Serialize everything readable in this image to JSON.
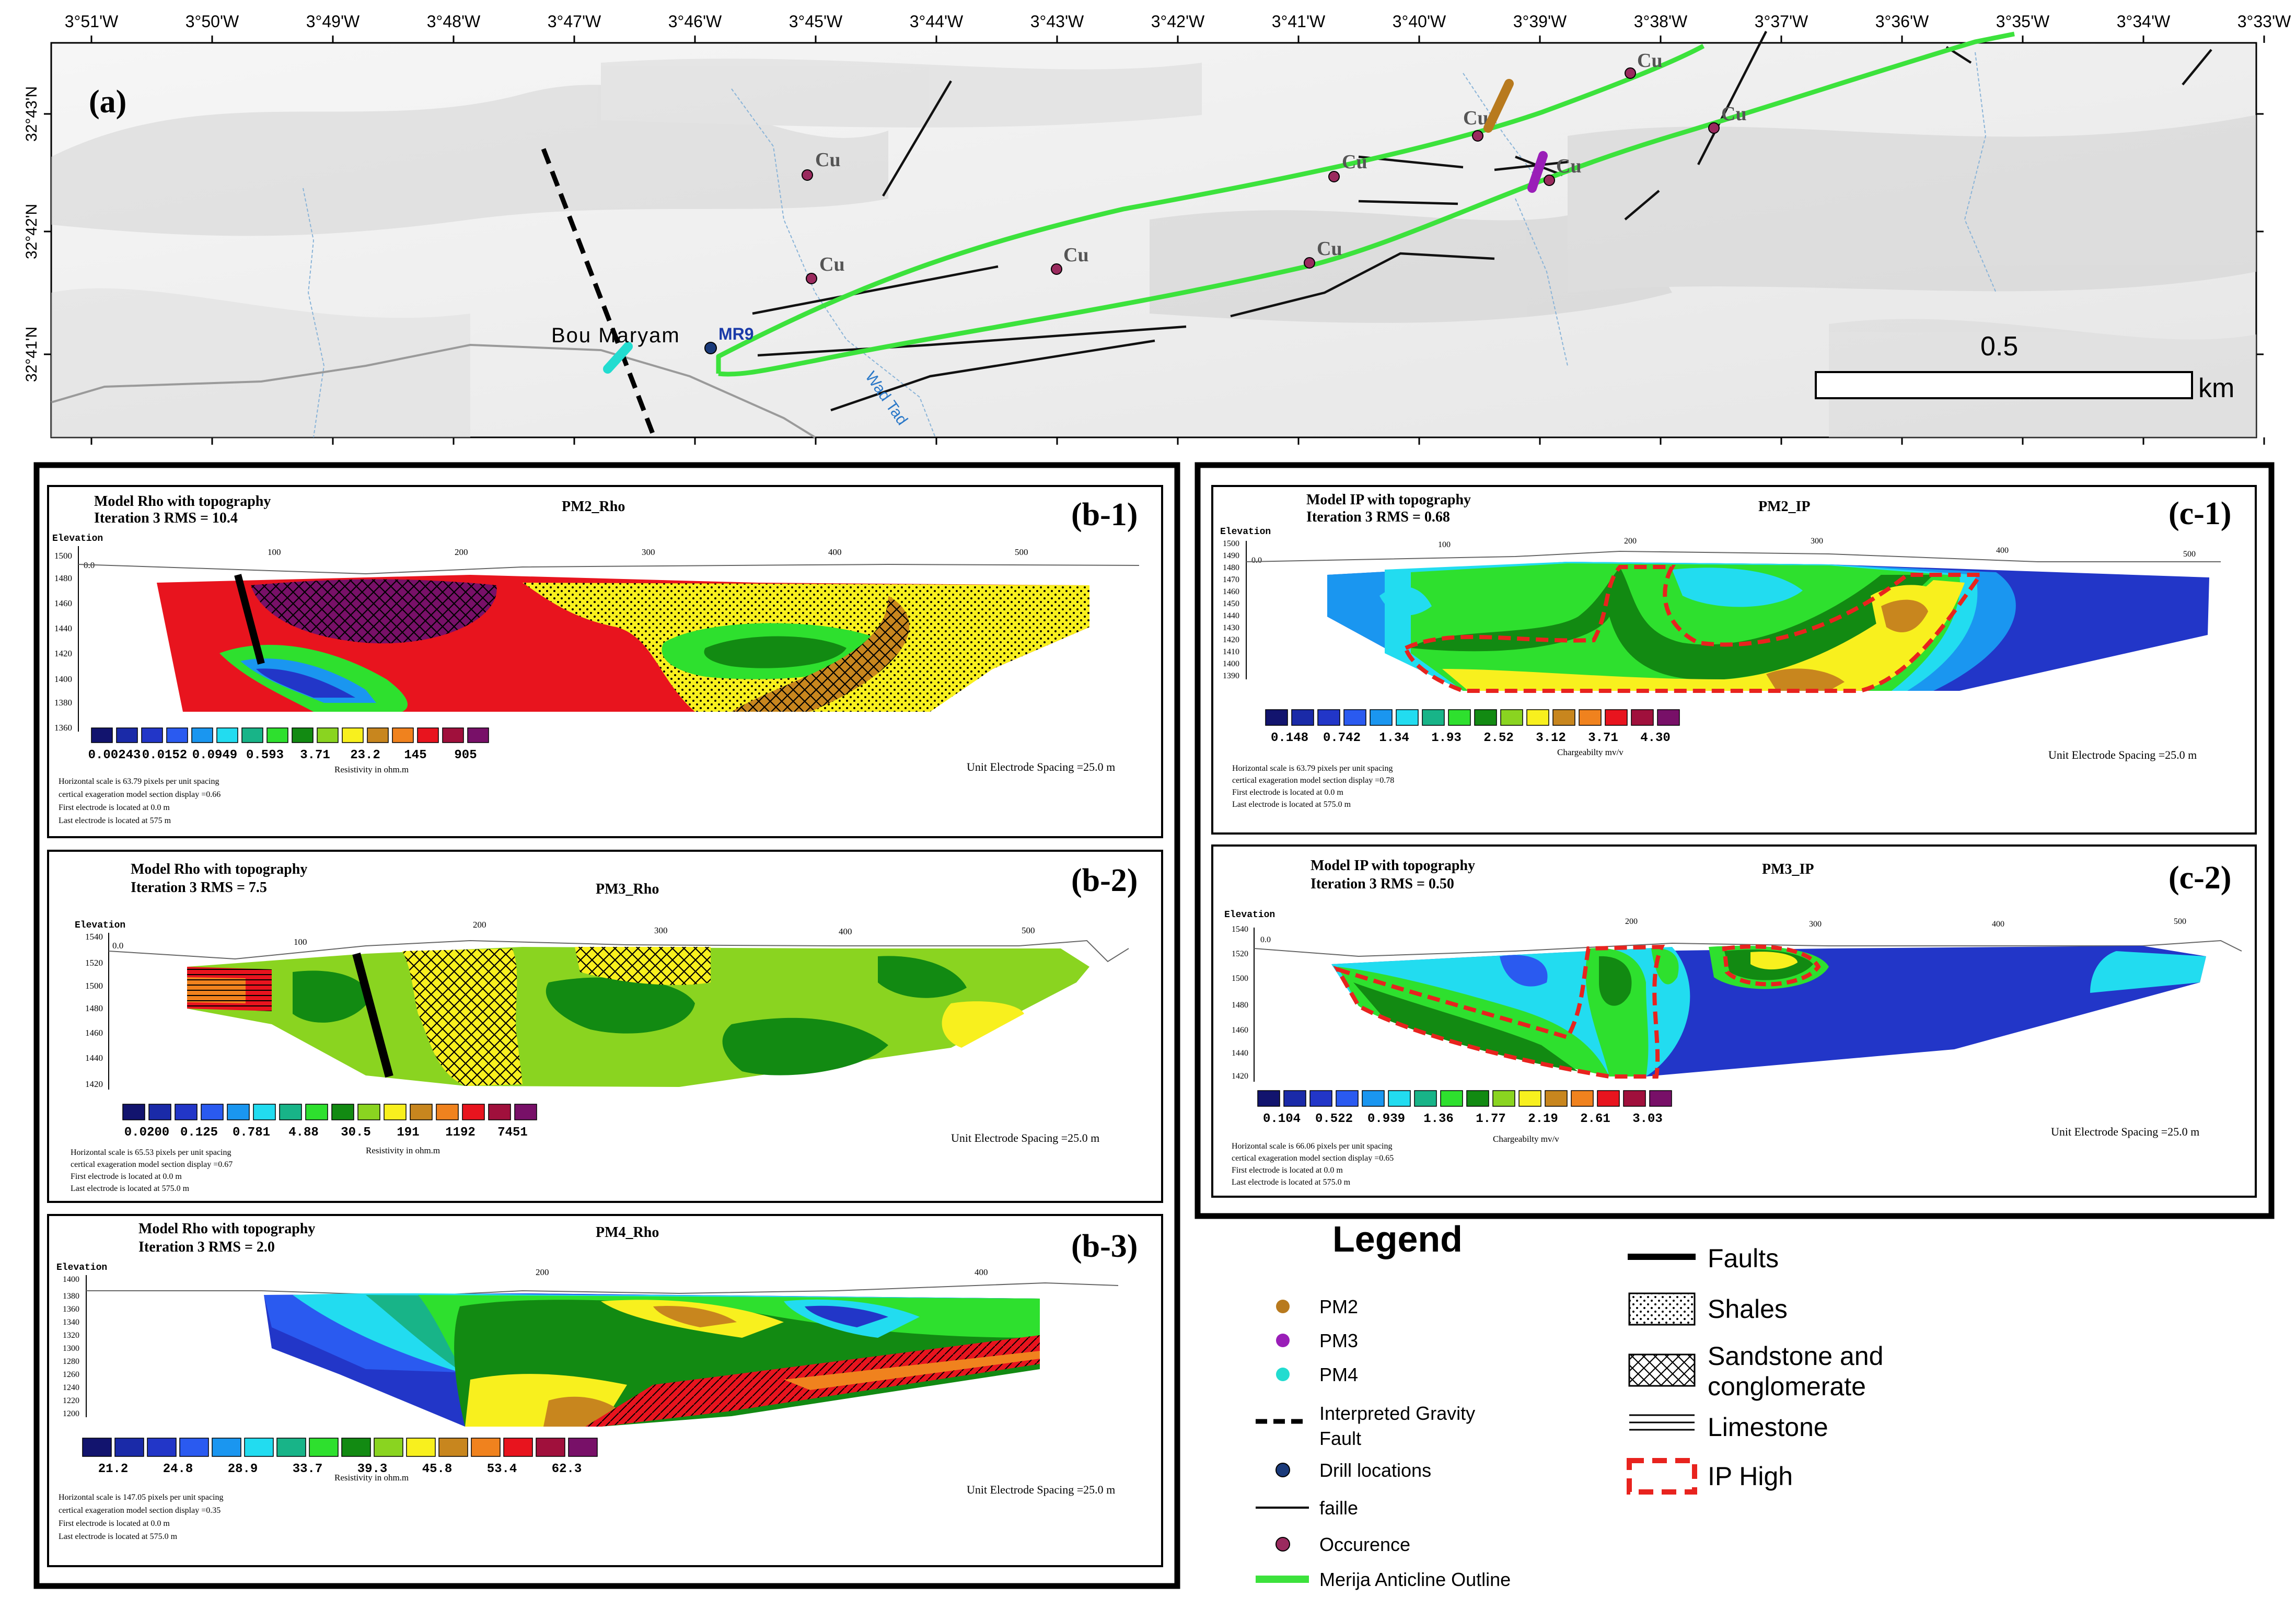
{
  "map": {
    "panel_label": "(a)",
    "lon_ticks": [
      "3°51'W",
      "3°50'W",
      "3°49'W",
      "3°48'W",
      "3°47'W",
      "3°46'W",
      "3°45'W",
      "3°44'W",
      "3°43'W",
      "3°42'W",
      "3°41'W",
      "3°40'W",
      "3°39'W",
      "3°38'W",
      "3°37'W",
      "3°36'W",
      "3°35'W",
      "3°34'W",
      "3°33'W"
    ],
    "lat_ticks": [
      "32°43'N",
      "32°42'N",
      "32°41'N"
    ],
    "place_label": "Bou Maryam",
    "drill_label": "MR9",
    "river_label": "Wad Tad",
    "occurrence_label": "Cu",
    "scale_value": "0.5",
    "scale_unit": "km"
  },
  "resistivity_group": {
    "panels": [
      {
        "id": "b-1",
        "label": "(b-1)",
        "header": "Model Rho with topography",
        "iteration": "Iteration 3 RMS = 10.4",
        "profile": "PM2_Rho",
        "elev_label": "Elevation",
        "elev_ticks": [
          "1500",
          "1480",
          "1460",
          "1440",
          "1420",
          "1400",
          "1380",
          "1360"
        ],
        "dist_ticks": [
          "0.0",
          "100",
          "200",
          "300",
          "400",
          "500"
        ],
        "scale_values": [
          "0.00243",
          "0.0152",
          "0.0949",
          "0.593",
          "3.71",
          "23.2",
          "145",
          "905"
        ],
        "scale_unit": "Resistivity in ohm.m",
        "spacing": "Unit Electrode Spacing =25.0 m",
        "notes": [
          "Horizontal scale is  63.79  pixels per unit spacing",
          "certical exageration model section display =0.66",
          "First electrode is located at 0.0 m",
          "Last electrode is located at 575 m"
        ]
      },
      {
        "id": "b-2",
        "label": "(b-2)",
        "header": "Model Rho with topography",
        "iteration": "Iteration 3 RMS = 7.5",
        "profile": "PM3_Rho",
        "elev_label": "Elevation",
        "elev_ticks": [
          "1540",
          "1520",
          "1500",
          "1480",
          "1460",
          "1440",
          "1420"
        ],
        "dist_ticks": [
          "0.0",
          "100",
          "200",
          "300",
          "400",
          "500"
        ],
        "scale_values": [
          "0.0200",
          "0.125",
          "0.781",
          "4.88",
          "30.5",
          "191",
          "1192",
          "7451"
        ],
        "scale_unit": "Resistivity in ohm.m",
        "spacing": "Unit Electrode Spacing =25.0 m",
        "notes": [
          "Horizontal scale is  65.53  pixels per unit spacing",
          "certical exageration model section display =0.67",
          "First electrode is located at 0.0 m",
          "Last electrode is located at 575.0 m"
        ]
      },
      {
        "id": "b-3",
        "label": "(b-3)",
        "header": "Model Rho with topography",
        "iteration": "Iteration 3 RMS = 2.0",
        "profile": "PM4_Rho",
        "elev_label": "Elevation",
        "elev_ticks": [
          "1400",
          "1380",
          "1360",
          "1340",
          "1320",
          "1300",
          "1280",
          "1260",
          "1240",
          "1220",
          "1200"
        ],
        "dist_ticks": [
          "200",
          "400"
        ],
        "scale_values": [
          "21.2",
          "24.8",
          "28.9",
          "33.7",
          "39.3",
          "45.8",
          "53.4",
          "62.3"
        ],
        "scale_unit": "Resistivity in ohm.m",
        "spacing": "Unit Electrode Spacing =25.0 m",
        "notes": [
          "Horizontal scale is  147.05  pixels per unit spacing",
          "certical exageration model section display =0.35",
          "First electrode is located at 0.0 m",
          "Last electrode is located at 575.0 m"
        ]
      }
    ]
  },
  "ip_group": {
    "panels": [
      {
        "id": "c-1",
        "label": "(c-1)",
        "header": "Model IP with topography",
        "iteration": "Iteration 3 RMS = 0.68",
        "profile": "PM2_IP",
        "elev_label": "Elevation",
        "elev_ticks": [
          "1500",
          "1490",
          "1480",
          "1470",
          "1460",
          "1450",
          "1440",
          "1430",
          "1420",
          "1410",
          "1400",
          "1390"
        ],
        "dist_ticks": [
          "0.0",
          "100",
          "200",
          "300",
          "400",
          "500"
        ],
        "scale_values": [
          "0.148",
          "0.742",
          "1.34",
          "1.93",
          "2.52",
          "3.12",
          "3.71",
          "4.30"
        ],
        "scale_unit": "Chargeabilty mv/v",
        "spacing": "Unit Electrode Spacing =25.0 m",
        "notes": [
          "Horizontal scale is  63.79  pixels per unit spacing",
          "certical exageration model section display =0.78",
          "First electrode is located at 0.0 m",
          "Last electrode is located at 575.0 m"
        ]
      },
      {
        "id": "c-2",
        "label": "(c-2)",
        "header": "Model IP with topography",
        "iteration": "Iteration 3 RMS = 0.50",
        "profile": "PM3_IP",
        "elev_label": "Elevation",
        "elev_ticks": [
          "1540",
          "1520",
          "1500",
          "1480",
          "1460",
          "1440",
          "1420"
        ],
        "dist_ticks": [
          "0.0",
          "200",
          "300",
          "400",
          "500"
        ],
        "scale_values": [
          "0.104",
          "0.522",
          "0.939",
          "1.36",
          "1.77",
          "2.19",
          "2.61",
          "3.03"
        ],
        "scale_unit": "Chargeabilty mv/v",
        "spacing": "Unit Electrode Spacing =25.0 m",
        "notes": [
          "Horizontal scale is  66.06  pixels per unit spacing",
          "certical exageration model section display =0.65",
          "First electrode is located at 0.0 m",
          "Last electrode is located at 575.0 m"
        ]
      }
    ]
  },
  "legend": {
    "title": "Legend",
    "items": [
      {
        "label": "PM2",
        "color": "#b87a1e"
      },
      {
        "label": "PM3",
        "color": "#9a1eb8"
      },
      {
        "label": "PM4",
        "color": "#22dcd0"
      },
      {
        "label_lines": [
          "Interpreted Gravity",
          "Fault"
        ]
      },
      {
        "label": "Drill locations",
        "color": "#1a3a7a"
      },
      {
        "label": "faille"
      },
      {
        "label": "Occurence",
        "color": "#9a2a5e"
      },
      {
        "label": "Merija Anticline Outline",
        "color": "#3ce23c"
      }
    ],
    "geology": [
      {
        "label": "Faults"
      },
      {
        "label": "Shales"
      },
      {
        "label_lines": [
          "Sandstone and",
          "conglomerate"
        ]
      },
      {
        "label": "Limestone"
      },
      {
        "label": "IP High",
        "color": "#e8231e"
      }
    ]
  },
  "colors": {
    "rho_scale": [
      "#12146e",
      "#1a2aa8",
      "#2236c8",
      "#2a5af0",
      "#1a96f0",
      "#22dcf0",
      "#18b488",
      "#2ee02e",
      "#128a12",
      "#8ad420",
      "#f8f01e",
      "#c8861e",
      "#f0821e",
      "#e8141e",
      "#a0103c",
      "#781068"
    ]
  }
}
